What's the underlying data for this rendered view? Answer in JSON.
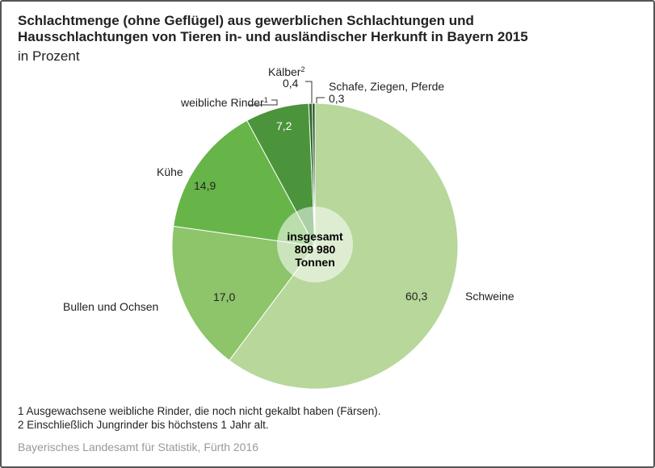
{
  "title_line1": "Schlachtmenge (ohne Geflügel) aus gewerblichen Schlachtungen und",
  "title_line2": "Hausschlachtungen von Tieren in- und ausländischer Herkunft in Bayern 2015",
  "subtitle": "in Prozent",
  "center": {
    "line1": "insgesamt",
    "line2": "809 980",
    "line3": "Tonnen"
  },
  "chart_data": {
    "type": "pie",
    "title": "Schlachtmenge (ohne Geflügel) aus gewerblichen Schlachtungen und Hausschlachtungen von Tieren in- und ausländischer Herkunft in Bayern 2015",
    "unit": "Prozent",
    "total": "809 980 Tonnen",
    "slices": [
      {
        "name": "Schweine",
        "value": 60.3,
        "label": "60,3",
        "color": "#b7d79b"
      },
      {
        "name": "Bullen und Ochsen",
        "value": 17.0,
        "label": "17,0",
        "color": "#8ec46a"
      },
      {
        "name": "Kühe",
        "value": 14.9,
        "label": "14,9",
        "color": "#67b548"
      },
      {
        "name": "weibliche Rinder",
        "sup": "1",
        "value": 7.2,
        "label": "7,2",
        "color": "#4b943b"
      },
      {
        "name": "Kälber",
        "sup": "2",
        "value": 0.4,
        "label": "0,4",
        "color": "#2d6a2a"
      },
      {
        "name": "Schafe, Ziegen, Pferde",
        "value": 0.3,
        "label": "0,3",
        "color": "#1d4a1e"
      }
    ]
  },
  "footnotes": [
    "1  Ausgewachsene weibliche Rinder, die noch nicht gekalbt haben (Färsen).",
    "2  Einschließlich Jungrinder bis höchstens 1 Jahr alt."
  ],
  "source": "Bayerisches Landesamt für Statistik, Fürth 2016"
}
